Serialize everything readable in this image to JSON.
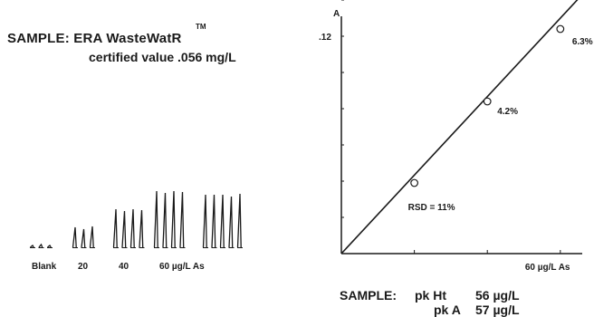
{
  "sample": {
    "title": "SAMPLE: ERA WasteWatR",
    "trademark": "TM",
    "certified": "certified value .056 mg/L"
  },
  "chart_data": [
    {
      "type": "peaks",
      "groups": [
        {
          "label": "Blank",
          "heights": [
            0.02,
            0.03,
            0.02
          ]
        },
        {
          "label": "20",
          "heights": [
            0.22,
            0.2,
            0.23
          ]
        },
        {
          "label": "40",
          "heights": [
            0.42,
            0.4,
            0.42,
            0.41
          ]
        },
        {
          "label": "60 µg/L As",
          "heights": [
            0.62,
            0.6,
            0.62,
            0.61
          ]
        },
        {
          "label": "",
          "heights": [
            0.58,
            0.58,
            0.58,
            0.56,
            0.59
          ]
        }
      ]
    },
    {
      "type": "scatter",
      "ylabel": "A",
      "y_tick_labels": [
        {
          "value": 0.12,
          "label": ".12"
        }
      ],
      "x_tick_labels": [
        {
          "value": 60,
          "label": "60 µg/L As"
        }
      ],
      "xlim": [
        0,
        66
      ],
      "ylim": [
        0,
        0.14
      ],
      "points": [
        {
          "x": 20,
          "y": 0.039,
          "label": "RSD = 11%"
        },
        {
          "x": 40,
          "y": 0.084,
          "label": "4.2%"
        },
        {
          "x": 60,
          "y": 0.124,
          "label": "6.3%"
        }
      ],
      "fit_line": {
        "x": [
          0,
          66
        ],
        "y": [
          0,
          0.143
        ]
      }
    }
  ],
  "summary": {
    "label": "SAMPLE:",
    "rows": [
      {
        "name": "pk Ht",
        "value": "56 µg/L"
      },
      {
        "name": "pk A",
        "value": "57 µg/L"
      }
    ]
  }
}
